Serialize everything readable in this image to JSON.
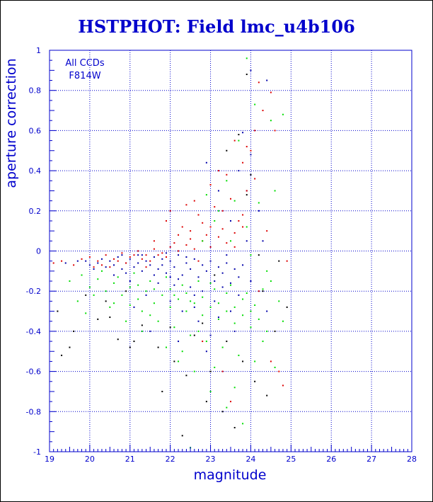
{
  "chart_data": {
    "type": "scatter",
    "title": "HSTPHOT: Field lmc_u4b106",
    "xlabel": "magnitude",
    "ylabel": "aperture correction",
    "xlim": [
      19,
      28
    ],
    "ylim": [
      -1,
      1
    ],
    "x_ticks": [
      "19",
      "20",
      "21",
      "22",
      "23",
      "24",
      "25",
      "26",
      "27",
      "28"
    ],
    "y_ticks": [
      "-1",
      "-0.8",
      "-0.6",
      "-0.4",
      "-0.2",
      "0",
      "0.2",
      "0.4",
      "0.6",
      "0.8",
      "1"
    ],
    "grid": true,
    "annotations": [
      "All CCDs",
      "F814W"
    ],
    "colors": {
      "axis": "#0000cc",
      "title": "#0000cc",
      "grid": "#0000cc",
      "series_1": "#0000aa",
      "series_2": "#dd0000",
      "series_3": "#00dd00",
      "series_4": "#000000"
    },
    "series": [
      {
        "color": "#0000aa",
        "points": [
          [
            19.4,
            -0.06
          ],
          [
            19.7,
            -0.05
          ],
          [
            19.9,
            -0.05
          ],
          [
            20.0,
            -0.07
          ],
          [
            20.1,
            -0.09
          ],
          [
            20.2,
            -0.06
          ],
          [
            20.3,
            -0.04
          ],
          [
            20.4,
            -0.08
          ],
          [
            20.5,
            -0.05
          ],
          [
            20.6,
            -0.07
          ],
          [
            20.7,
            -0.03
          ],
          [
            20.8,
            -0.09
          ],
          [
            20.9,
            -0.06
          ],
          [
            21.0,
            -0.04
          ],
          [
            21.1,
            -0.08
          ],
          [
            21.2,
            -0.02
          ],
          [
            21.3,
            -0.1
          ],
          [
            21.4,
            -0.05
          ],
          [
            21.5,
            -0.07
          ],
          [
            21.6,
            -0.03
          ],
          [
            21.7,
            -0.09
          ],
          [
            21.8,
            -0.04
          ],
          [
            21.9,
            -0.11
          ],
          [
            22.0,
            -0.05
          ],
          [
            22.1,
            -0.08
          ],
          [
            22.2,
            -0.02
          ],
          [
            22.3,
            -0.12
          ],
          [
            22.4,
            -0.06
          ],
          [
            22.5,
            -0.09
          ],
          [
            22.6,
            -0.04
          ],
          [
            22.7,
            -0.13
          ],
          [
            22.8,
            -0.07
          ],
          [
            22.9,
            -0.1
          ],
          [
            23.0,
            -0.05
          ],
          [
            23.1,
            -0.15
          ],
          [
            23.2,
            -0.08
          ],
          [
            23.3,
            -0.11
          ],
          [
            23.4,
            -0.06
          ],
          [
            23.5,
            -0.16
          ],
          [
            23.6,
            -0.09
          ],
          [
            23.7,
            -0.13
          ],
          [
            23.8,
            -0.07
          ],
          [
            20.9,
            -0.11
          ],
          [
            21.3,
            -0.02
          ],
          [
            21.6,
            -0.12
          ],
          [
            21.9,
            -0.01
          ],
          [
            22.2,
            -0.14
          ],
          [
            22.5,
            -0.18
          ],
          [
            22.8,
            -0.2
          ],
          [
            23.1,
            -0.25
          ],
          [
            23.4,
            -0.02
          ],
          [
            23.7,
            -0.22
          ],
          [
            22.0,
            -0.25
          ],
          [
            22.7,
            -0.35
          ],
          [
            23.0,
            -0.42
          ],
          [
            21.5,
            -0.4
          ],
          [
            22.2,
            -0.45
          ],
          [
            22.9,
            -0.5
          ],
          [
            23.5,
            -0.3
          ],
          [
            23.9,
            0.05
          ],
          [
            23.8,
            0.59
          ],
          [
            24.0,
            0.48
          ],
          [
            24.4,
            0.85
          ],
          [
            24.0,
            0.9
          ],
          [
            23.7,
            0.4
          ],
          [
            23.5,
            0.15
          ],
          [
            22.9,
            0.44
          ],
          [
            23.2,
            0.3
          ],
          [
            23.9,
            0.3
          ],
          [
            24.2,
            0.2
          ],
          [
            21.1,
            -0.28
          ],
          [
            21.4,
            -0.22
          ],
          [
            20.6,
            -0.12
          ],
          [
            21.0,
            -0.15
          ],
          [
            22.3,
            -0.3
          ],
          [
            22.6,
            -0.28
          ],
          [
            23.2,
            -0.33
          ],
          [
            23.6,
            -0.4
          ],
          [
            24.0,
            -0.15
          ],
          [
            24.3,
            0.05
          ],
          [
            21.8,
            -0.07
          ],
          [
            22.0,
            -0.13
          ],
          [
            22.4,
            -0.03
          ],
          [
            21.2,
            -0.06
          ],
          [
            20.8,
            -0.02
          ],
          [
            22.1,
            -0.17
          ],
          [
            23.3,
            -0.18
          ],
          [
            21.7,
            -0.16
          ],
          [
            22.6,
            -0.22
          ],
          [
            24.4,
            -0.3
          ]
        ]
      },
      {
        "color": "#dd0000",
        "points": [
          [
            19.1,
            -0.06
          ],
          [
            19.3,
            -0.05
          ],
          [
            19.6,
            -0.07
          ],
          [
            19.8,
            -0.04
          ],
          [
            20.0,
            -0.03
          ],
          [
            20.2,
            -0.05
          ],
          [
            20.4,
            -0.02
          ],
          [
            20.6,
            -0.04
          ],
          [
            20.8,
            -0.01
          ],
          [
            21.0,
            -0.03
          ],
          [
            21.2,
            0.0
          ],
          [
            21.4,
            -0.02
          ],
          [
            21.6,
            0.01
          ],
          [
            21.8,
            -0.01
          ],
          [
            22.0,
            0.02
          ],
          [
            22.2,
            0.0
          ],
          [
            22.4,
            0.03
          ],
          [
            22.6,
            0.01
          ],
          [
            22.8,
            0.05
          ],
          [
            23.0,
            0.02
          ],
          [
            23.2,
            0.07
          ],
          [
            23.4,
            0.04
          ],
          [
            23.6,
            0.09
          ],
          [
            23.8,
            0.12
          ],
          [
            20.5,
            -0.08
          ],
          [
            20.9,
            -0.06
          ],
          [
            21.3,
            -0.04
          ],
          [
            21.7,
            -0.02
          ],
          [
            22.1,
            0.04
          ],
          [
            22.5,
            0.06
          ],
          [
            22.9,
            0.08
          ],
          [
            23.3,
            0.11
          ],
          [
            23.7,
            0.15
          ],
          [
            22.3,
            0.12
          ],
          [
            22.7,
            0.18
          ],
          [
            23.1,
            0.22
          ],
          [
            23.5,
            0.26
          ],
          [
            23.9,
            0.3
          ],
          [
            22.0,
            0.2
          ],
          [
            22.6,
            0.25
          ],
          [
            23.0,
            0.33
          ],
          [
            23.4,
            0.38
          ],
          [
            23.8,
            0.44
          ],
          [
            24.0,
            0.5
          ],
          [
            23.6,
            0.55
          ],
          [
            24.1,
            0.6
          ],
          [
            24.3,
            0.7
          ],
          [
            24.2,
            0.84
          ],
          [
            24.5,
            0.79
          ],
          [
            24.6,
            0.6
          ],
          [
            24.7,
            -0.6
          ],
          [
            24.8,
            -0.67
          ],
          [
            24.5,
            -0.55
          ],
          [
            23.5,
            -0.75
          ],
          [
            23.3,
            -0.6
          ],
          [
            22.8,
            -0.45
          ],
          [
            21.9,
            0.15
          ],
          [
            22.4,
            0.23
          ],
          [
            23.2,
            0.4
          ],
          [
            23.9,
            0.52
          ],
          [
            21.5,
            -0.05
          ],
          [
            21.1,
            -0.02
          ],
          [
            20.7,
            -0.05
          ],
          [
            20.3,
            -0.07
          ],
          [
            21.9,
            -0.03
          ],
          [
            22.2,
            0.08
          ],
          [
            22.8,
            0.14
          ],
          [
            23.3,
            0.2
          ],
          [
            24.1,
            0.36
          ],
          [
            24.4,
            0.1
          ],
          [
            20.1,
            -0.08
          ],
          [
            21.6,
            0.05
          ],
          [
            22.5,
            0.1
          ],
          [
            23.0,
            0.12
          ],
          [
            23.6,
            0.02
          ],
          [
            24.2,
            -0.2
          ],
          [
            24.9,
            -0.05
          ],
          [
            23.8,
            0.18
          ],
          [
            22.7,
            -0.05
          ],
          [
            21.4,
            -0.08
          ]
        ]
      },
      {
        "color": "#00dd00",
        "points": [
          [
            19.5,
            -0.15
          ],
          [
            19.8,
            -0.12
          ],
          [
            20.0,
            -0.18
          ],
          [
            20.2,
            -0.14
          ],
          [
            20.4,
            -0.2
          ],
          [
            20.6,
            -0.16
          ],
          [
            20.8,
            -0.22
          ],
          [
            21.0,
            -0.18
          ],
          [
            21.2,
            -0.24
          ],
          [
            21.4,
            -0.2
          ],
          [
            21.6,
            -0.26
          ],
          [
            21.8,
            -0.22
          ],
          [
            22.0,
            -0.28
          ],
          [
            22.2,
            -0.24
          ],
          [
            22.4,
            -0.3
          ],
          [
            22.6,
            -0.26
          ],
          [
            22.8,
            -0.32
          ],
          [
            23.0,
            -0.28
          ],
          [
            23.2,
            -0.34
          ],
          [
            23.4,
            -0.3
          ],
          [
            23.6,
            -0.36
          ],
          [
            23.8,
            -0.32
          ],
          [
            24.0,
            -0.38
          ],
          [
            24.2,
            -0.34
          ],
          [
            24.4,
            -0.4
          ],
          [
            20.3,
            -0.1
          ],
          [
            20.7,
            -0.13
          ],
          [
            21.1,
            -0.11
          ],
          [
            21.5,
            -0.15
          ],
          [
            21.9,
            -0.13
          ],
          [
            22.3,
            -0.17
          ],
          [
            22.7,
            -0.15
          ],
          [
            23.1,
            -0.19
          ],
          [
            23.5,
            -0.17
          ],
          [
            23.9,
            -0.21
          ],
          [
            24.3,
            -0.19
          ],
          [
            21.3,
            -0.3
          ],
          [
            21.7,
            -0.35
          ],
          [
            22.1,
            -0.38
          ],
          [
            22.5,
            -0.42
          ],
          [
            22.9,
            -0.45
          ],
          [
            23.3,
            -0.48
          ],
          [
            23.7,
            -0.52
          ],
          [
            24.1,
            -0.55
          ],
          [
            22.2,
            -0.55
          ],
          [
            22.6,
            -0.6
          ],
          [
            23.0,
            -0.7
          ],
          [
            23.4,
            -0.78
          ],
          [
            23.8,
            -0.86
          ],
          [
            22.5,
            -0.98
          ],
          [
            23.9,
            0.96
          ],
          [
            24.1,
            0.73
          ],
          [
            24.5,
            0.65
          ],
          [
            24.8,
            0.68
          ],
          [
            23.7,
            0.55
          ],
          [
            23.4,
            0.35
          ],
          [
            23.1,
            0.15
          ],
          [
            22.8,
            0.05
          ],
          [
            23.5,
            0.05
          ],
          [
            23.9,
            0.12
          ],
          [
            24.2,
            0.24
          ],
          [
            24.6,
            0.3
          ],
          [
            23.6,
            0.25
          ],
          [
            23.2,
            0.2
          ],
          [
            22.9,
            0.28
          ],
          [
            24.0,
            -0.02
          ],
          [
            24.4,
            -0.1
          ],
          [
            24.7,
            -0.25
          ],
          [
            24.3,
            -0.45
          ],
          [
            24.6,
            -0.58
          ],
          [
            19.7,
            -0.25
          ],
          [
            19.9,
            -0.31
          ],
          [
            20.5,
            -0.28
          ],
          [
            20.9,
            -0.35
          ],
          [
            21.3,
            -0.4
          ],
          [
            21.9,
            -0.48
          ],
          [
            22.3,
            -0.5
          ],
          [
            22.7,
            -0.4
          ],
          [
            23.1,
            -0.58
          ],
          [
            23.6,
            -0.68
          ],
          [
            20.1,
            -0.22
          ],
          [
            20.6,
            -0.26
          ],
          [
            21.0,
            -0.27
          ],
          [
            21.5,
            -0.32
          ],
          [
            22.0,
            -0.19
          ],
          [
            22.4,
            -0.21
          ],
          [
            22.8,
            -0.23
          ],
          [
            23.2,
            -0.26
          ],
          [
            23.6,
            -0.28
          ],
          [
            24.0,
            -0.3
          ],
          [
            21.2,
            -0.17
          ],
          [
            21.6,
            -0.19
          ],
          [
            22.1,
            -0.22
          ],
          [
            22.5,
            -0.25
          ],
          [
            23.0,
            -0.16
          ],
          [
            23.4,
            -0.21
          ],
          [
            23.8,
            -0.24
          ],
          [
            24.1,
            -0.27
          ],
          [
            24.5,
            -0.15
          ],
          [
            24.8,
            -0.35
          ]
        ]
      },
      {
        "color": "#000000",
        "points": [
          [
            19.2,
            -0.3
          ],
          [
            19.3,
            -0.52
          ],
          [
            19.5,
            -0.48
          ],
          [
            19.6,
            -0.4
          ],
          [
            20.2,
            -0.34
          ],
          [
            20.4,
            -0.25
          ],
          [
            20.7,
            -0.44
          ],
          [
            21.0,
            -0.48
          ],
          [
            21.3,
            -0.37
          ],
          [
            21.8,
            -0.7
          ],
          [
            22.1,
            -0.55
          ],
          [
            22.4,
            -0.62
          ],
          [
            22.6,
            -0.42
          ],
          [
            22.9,
            -0.75
          ],
          [
            23.0,
            -0.6
          ],
          [
            23.3,
            -0.8
          ],
          [
            23.6,
            -0.88
          ],
          [
            23.8,
            -0.55
          ],
          [
            24.1,
            -0.65
          ],
          [
            24.4,
            -0.72
          ],
          [
            24.6,
            -0.4
          ],
          [
            24.9,
            -0.28
          ],
          [
            24.2,
            -0.02
          ],
          [
            23.9,
            0.88
          ],
          [
            23.7,
            0.58
          ],
          [
            23.4,
            0.5
          ],
          [
            24.0,
            0.38
          ],
          [
            23.9,
            0.28
          ],
          [
            22.3,
            -0.92
          ],
          [
            21.7,
            -0.48
          ],
          [
            21.1,
            -0.45
          ],
          [
            20.5,
            -0.33
          ],
          [
            22.8,
            -0.36
          ],
          [
            23.4,
            -0.45
          ],
          [
            24.3,
            -0.2
          ],
          [
            23.1,
            -0.12
          ],
          [
            22.0,
            -0.38
          ],
          [
            20.9,
            -0.2
          ],
          [
            19.9,
            -0.22
          ],
          [
            24.7,
            -0.05
          ]
        ]
      }
    ]
  }
}
